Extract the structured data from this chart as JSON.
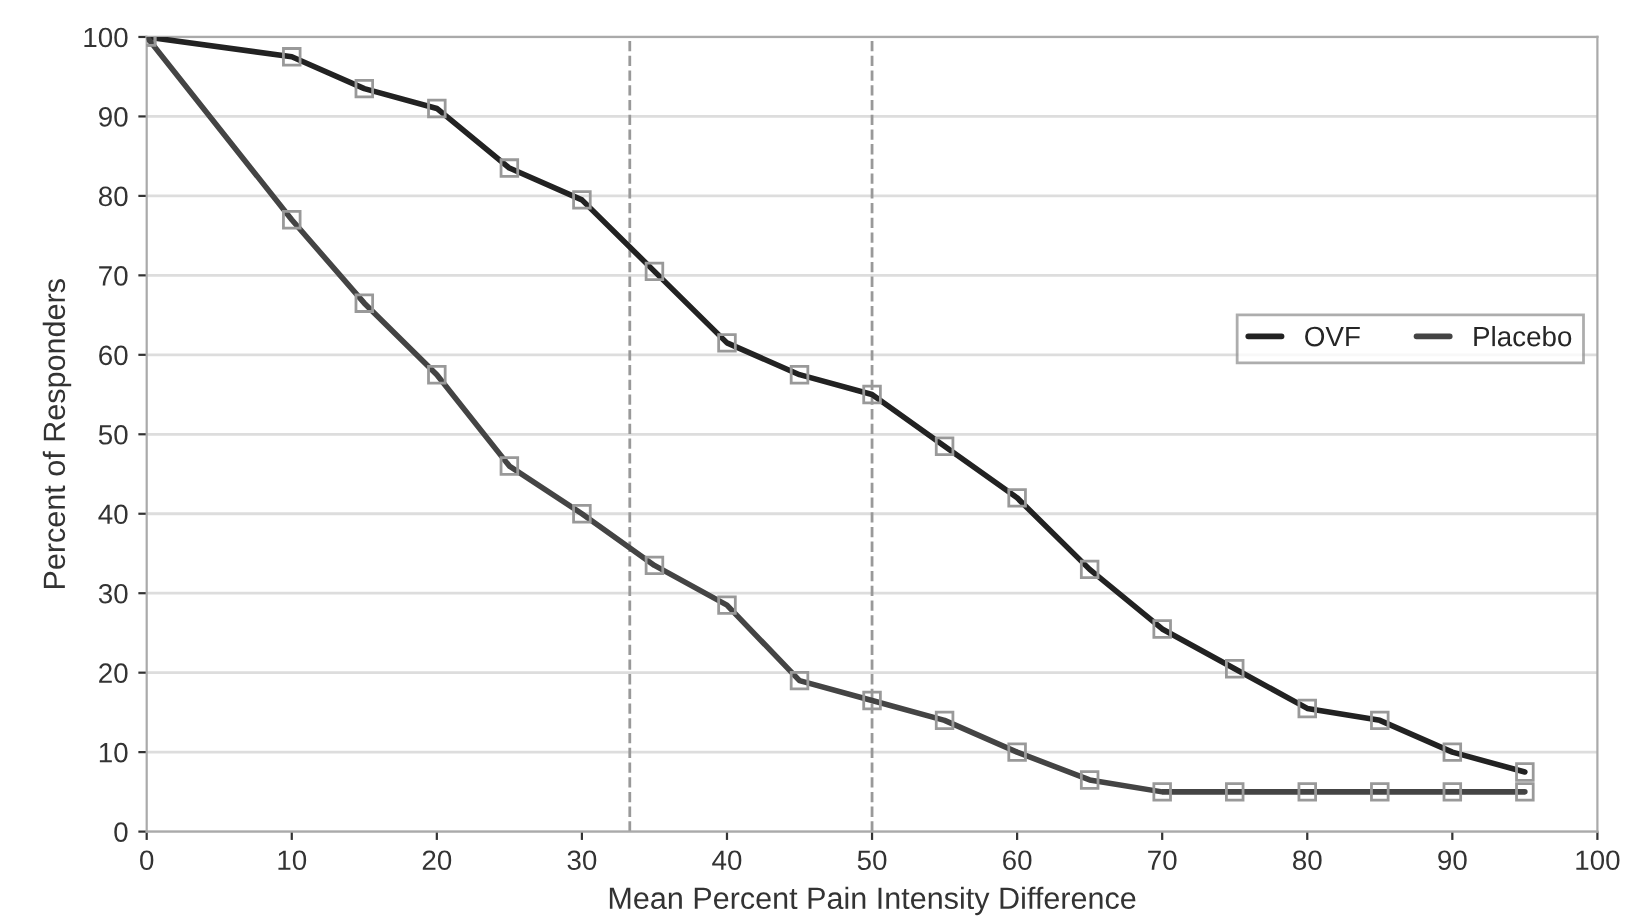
{
  "chart_data": {
    "type": "line",
    "xlabel": "Mean Percent Pain Intensity Difference",
    "ylabel": "Percent of Responders",
    "x": [
      0,
      10,
      15,
      20,
      25,
      30,
      35,
      40,
      45,
      50,
      55,
      60,
      65,
      70,
      75,
      80,
      85,
      90,
      95
    ],
    "series": [
      {
        "name": "OVF",
        "color": "#222222",
        "values": [
          100,
          97.5,
          93.5,
          91,
          83.5,
          79.5,
          70.5,
          61.5,
          57.5,
          55,
          48.5,
          42,
          33,
          25.5,
          20.5,
          15.5,
          14,
          10,
          7.5
        ]
      },
      {
        "name": "Placebo",
        "color": "#444444",
        "values": [
          100,
          77,
          66.5,
          57.5,
          46,
          40,
          33.5,
          28.5,
          19,
          16.5,
          14,
          10,
          6.5,
          5,
          5,
          5,
          5,
          5,
          5
        ]
      }
    ],
    "xlim": [
      0,
      100
    ],
    "xticks": [
      0,
      10,
      20,
      30,
      40,
      50,
      60,
      70,
      80,
      90,
      100
    ],
    "ylim": [
      0,
      100
    ],
    "yticks": [
      0,
      10,
      20,
      30,
      40,
      50,
      60,
      70,
      80,
      90,
      100
    ],
    "ref_lines": [
      {
        "axis": "x",
        "value": 33.3,
        "color": "#999999",
        "line_style": "dashed"
      },
      {
        "axis": "x",
        "value": 50,
        "color": "#999999",
        "line_style": "dashed"
      }
    ],
    "grid": "y",
    "legend": "right",
    "marker": "square",
    "line_style": "solid"
  }
}
